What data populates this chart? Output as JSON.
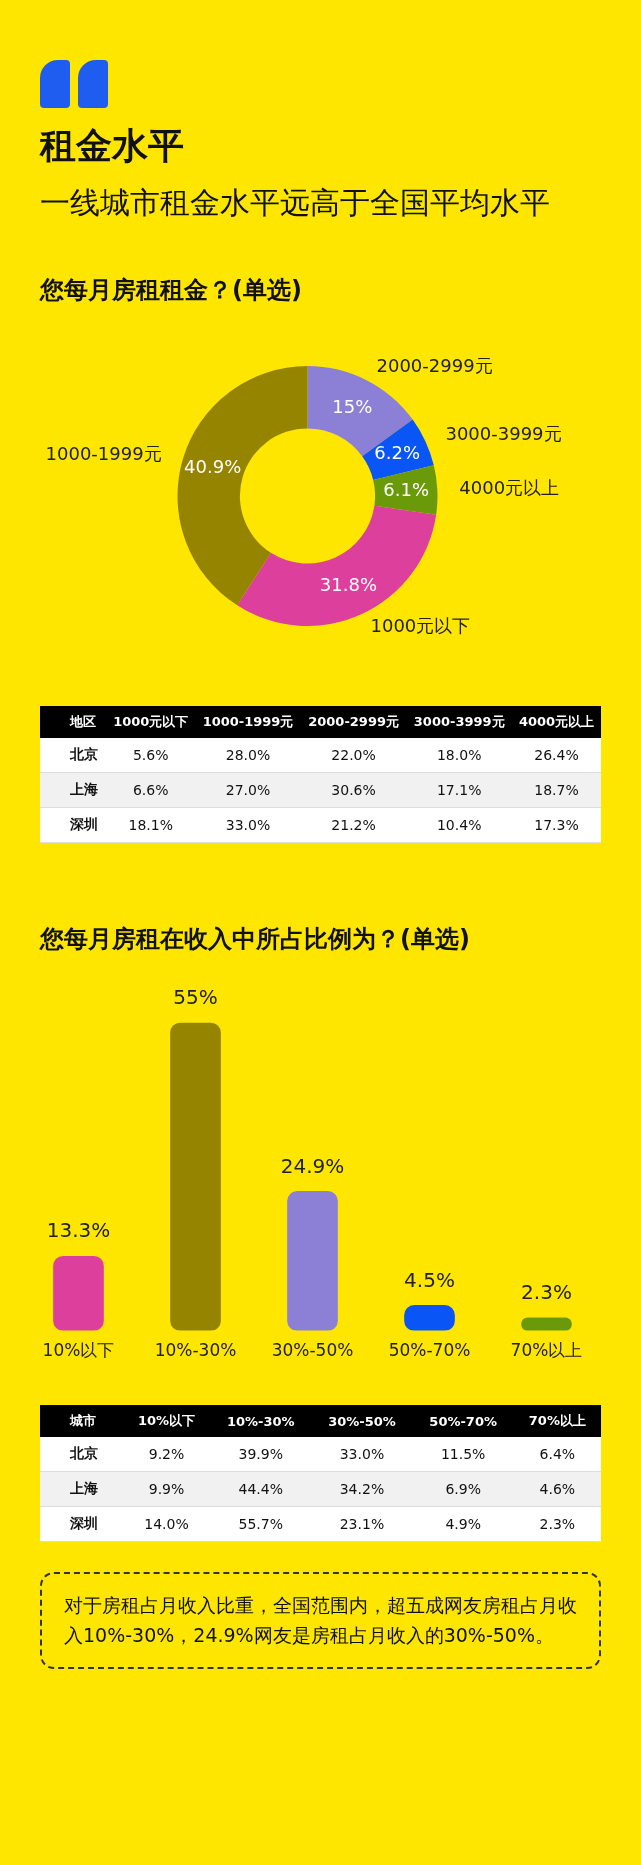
{
  "chart_data": [
    {
      "type": "other",
      "title": "租金水平",
      "subtitle": "一线城市租金水平远高于全国平均水平"
    },
    {
      "type": "donut",
      "title": "您每月房租租金？(单选)",
      "categories": [
        "2000-2999元",
        "3000-3999元",
        "4000元以上",
        "1000元以下",
        "1000-1999元"
      ],
      "values": [
        15,
        6.2,
        6.1,
        31.8,
        40.9
      ],
      "colors": [
        "#8b80d6",
        "#0a55f5",
        "#6a9a0a",
        "#dd3f9c",
        "#958400"
      ],
      "value_labels": [
        "15%",
        "6.2%",
        "6.1%",
        "31.8%",
        "40.9%"
      ]
    },
    {
      "type": "heatmap",
      "ylabel": "地区",
      "categories": [
        "1000元以下",
        "1000-1999元",
        "2000-2999元",
        "3000-3999元",
        "4000元以上"
      ],
      "y_categories": [
        "北京",
        "上海",
        "深圳"
      ],
      "cells": [
        [
          5.6,
          28.0,
          22.0,
          18.0,
          26.4
        ],
        [
          6.6,
          27.0,
          30.6,
          17.1,
          18.7
        ],
        [
          18.1,
          33.0,
          21.2,
          10.4,
          17.3
        ]
      ],
      "cell_labels": [
        [
          "5.6%",
          "28.0%",
          "22.0%",
          "18.0%",
          "26.4%"
        ],
        [
          "6.6%",
          "27.0%",
          "30.6%",
          "17.1%",
          "18.7%"
        ],
        [
          "18.1%",
          "33.0%",
          "21.2%",
          "10.4%",
          "17.3%"
        ]
      ]
    },
    {
      "type": "bar",
      "title": "您每月房租在收入中所占比例为？(单选)",
      "categories": [
        "10%以下",
        "10%-30%",
        "30%-50%",
        "50%-70%",
        "70%以上"
      ],
      "values": [
        13.3,
        55,
        24.9,
        4.5,
        2.3
      ],
      "colors": [
        "#dd3f9c",
        "#958400",
        "#8b80d6",
        "#0a55f5",
        "#6a9a0a"
      ],
      "value_labels": [
        "13.3%",
        "55%",
        "24.9%",
        "4.5%",
        "2.3%"
      ]
    },
    {
      "type": "heatmap",
      "ylabel": "城市",
      "categories": [
        "10%以下",
        "10%-30%",
        "30%-50%",
        "50%-70%",
        "70%以上"
      ],
      "y_categories": [
        "北京",
        "上海",
        "深圳"
      ],
      "cells": [
        [
          9.2,
          39.9,
          33.0,
          11.5,
          6.4
        ],
        [
          9.9,
          44.4,
          34.2,
          6.9,
          4.6
        ],
        [
          14.0,
          55.7,
          23.1,
          4.9,
          2.3
        ]
      ],
      "cell_labels": [
        [
          "9.2%",
          "39.9%",
          "33.0%",
          "11.5%",
          "6.4%"
        ],
        [
          "9.9%",
          "44.4%",
          "34.2%",
          "6.9%",
          "4.6%"
        ],
        [
          "14.0%",
          "55.7%",
          "23.1%",
          "4.9%",
          "2.3%"
        ]
      ]
    },
    {
      "type": "other",
      "annotations": [
        "对于房租占月收入比重，全国范围内，超五成网友房租占月收入10%-30%，24.9%网友是房租占月收入的30%-50%。"
      ]
    }
  ]
}
